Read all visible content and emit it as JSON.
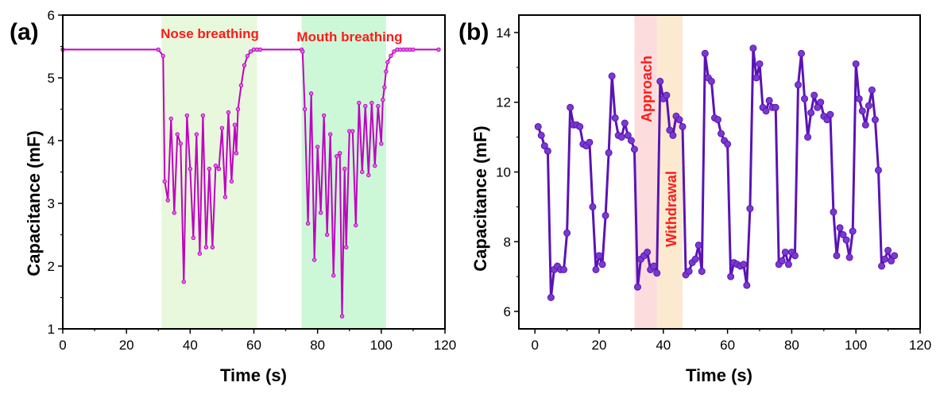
{
  "chart_data": [
    {
      "panel": "(a)",
      "type": "line",
      "xlabel": "Time (s)",
      "ylabel": "Capacitance (mF)",
      "xlim": [
        0,
        120
      ],
      "ylim": [
        1,
        6
      ],
      "xticks": [
        0,
        20,
        40,
        60,
        80,
        100,
        120
      ],
      "yticks": [
        1,
        2,
        3,
        4,
        5,
        6
      ],
      "line_color": "#c000c0",
      "marker_color": "#e070e8",
      "regions": [
        {
          "label": "Nose breathing",
          "x": [
            31,
            61
          ],
          "color": "#e8f8dc"
        },
        {
          "label": "Mouth breathing",
          "x": [
            75,
            101.5
          ],
          "color": "#ccf8d8"
        }
      ],
      "series": [
        {
          "x": [
            0,
            30,
            31.5,
            32,
            33,
            34,
            35,
            36,
            37,
            38,
            39,
            40,
            41,
            42,
            43,
            44,
            45,
            46,
            47,
            48,
            49,
            50,
            51,
            52,
            53,
            54,
            54.5,
            55,
            56,
            57,
            58,
            59,
            60,
            61,
            62,
            75,
            75.3,
            76,
            77,
            78,
            79,
            80,
            81,
            82,
            83,
            84,
            85,
            86,
            87,
            87.7,
            88.5,
            89,
            90,
            91,
            92,
            93,
            94,
            95,
            96,
            97,
            98,
            99,
            100,
            100.5,
            101,
            101.5,
            102,
            103,
            104,
            105,
            106,
            107,
            108,
            109,
            110,
            118
          ],
          "y": [
            5.45,
            5.45,
            5.35,
            3.35,
            3.05,
            4.35,
            2.85,
            4.1,
            3.95,
            1.75,
            4.4,
            3.55,
            2.45,
            4.1,
            2.2,
            4.4,
            2.3,
            3.55,
            2.3,
            3.6,
            3.55,
            4.2,
            3.1,
            4.45,
            3.35,
            4.25,
            3.8,
            4.5,
            4.88,
            5.2,
            5.35,
            5.42,
            5.45,
            5.45,
            5.45,
            5.45,
            5.42,
            4.5,
            2.68,
            4.75,
            2.1,
            3.9,
            2.85,
            4.4,
            2.5,
            4.1,
            1.85,
            3.75,
            3.8,
            1.2,
            3.55,
            2.3,
            4.15,
            4.15,
            2.65,
            4.6,
            3.5,
            4.55,
            3.45,
            4.6,
            3.6,
            4.55,
            3.95,
            4.65,
            4.85,
            5.1,
            5.25,
            5.35,
            5.42,
            5.45,
            5.45,
            5.45,
            5.45,
            5.45,
            5.45,
            5.45
          ]
        }
      ]
    },
    {
      "panel": "(b)",
      "type": "line",
      "xlabel": "Time (s)",
      "ylabel": "Capacitance (mF)",
      "xlim": [
        -5,
        120
      ],
      "ylim": [
        5.5,
        14.5
      ],
      "xticks": [
        0,
        20,
        40,
        60,
        80,
        100,
        120
      ],
      "yticks": [
        6,
        8,
        10,
        12,
        14
      ],
      "line_color": "#5a14b4",
      "marker_color": "#7a3ad0",
      "regions": [
        {
          "label": "Approach",
          "x": [
            31,
            38
          ],
          "color": "#fcdcdc"
        },
        {
          "label": "Withdrawal",
          "x": [
            38,
            46
          ],
          "color": "#fcead0"
        }
      ],
      "series": [
        {
          "x": [
            1,
            2,
            3,
            4,
            5,
            6,
            7,
            8,
            9,
            10,
            11,
            12,
            13,
            14,
            15,
            16,
            17,
            18,
            19,
            20,
            21,
            22,
            23,
            24,
            25,
            26,
            27,
            28,
            29,
            30,
            31,
            32,
            33,
            34,
            35,
            36,
            37,
            38,
            39,
            40,
            41,
            42,
            43,
            44,
            45,
            46,
            47,
            48,
            49,
            50,
            51,
            52,
            53,
            54,
            55,
            56,
            57,
            58,
            59,
            60,
            61,
            62,
            63,
            64,
            65,
            66,
            67,
            68,
            69,
            70,
            71,
            72,
            73,
            74,
            75,
            76,
            77,
            78,
            79,
            80,
            81,
            82,
            83,
            84,
            85,
            86,
            87,
            88,
            89,
            90,
            91,
            92,
            93,
            94,
            95,
            96,
            97,
            98,
            99,
            100,
            101,
            102,
            103,
            104,
            105,
            106,
            107,
            108,
            109,
            110,
            111,
            112
          ],
          "y": [
            11.3,
            11.05,
            10.75,
            10.6,
            6.4,
            7.2,
            7.3,
            7.2,
            7.2,
            8.25,
            11.85,
            11.35,
            11.35,
            11.3,
            10.8,
            10.75,
            10.85,
            9.0,
            7.2,
            7.6,
            7.35,
            8.75,
            10.55,
            12.75,
            11.55,
            11.05,
            11.0,
            11.4,
            11.05,
            10.9,
            10.65,
            6.7,
            7.5,
            7.6,
            7.7,
            7.2,
            7.3,
            7.1,
            12.6,
            12.1,
            12.2,
            11.2,
            11.05,
            11.6,
            11.5,
            11.3,
            7.05,
            7.15,
            7.4,
            7.5,
            7.9,
            7.15,
            13.4,
            12.7,
            12.6,
            11.55,
            11.5,
            11.1,
            10.9,
            10.8,
            7.0,
            7.4,
            7.35,
            7.3,
            7.35,
            6.75,
            8.95,
            13.55,
            12.7,
            13.1,
            11.85,
            11.75,
            12.05,
            11.85,
            11.85,
            7.35,
            7.45,
            7.7,
            7.35,
            7.7,
            7.6,
            12.5,
            13.4,
            12.1,
            11.0,
            11.7,
            12.2,
            11.85,
            12.0,
            11.6,
            11.5,
            11.65,
            8.85,
            7.6,
            8.4,
            8.2,
            8.05,
            7.55,
            8.3,
            13.1,
            12.1,
            11.75,
            11.35,
            11.9,
            12.35,
            11.5,
            10.05,
            7.3,
            7.5,
            7.75,
            7.45,
            7.6
          ]
        }
      ]
    }
  ]
}
